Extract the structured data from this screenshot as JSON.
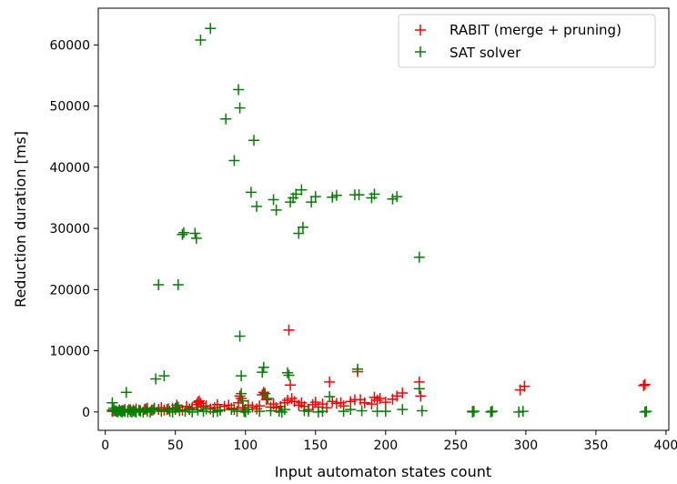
{
  "chart_data": {
    "type": "scatter",
    "xlabel": "Input automaton states count",
    "ylabel": "Reduction duration [ms]",
    "xlim": [
      -5,
      402
    ],
    "ylim": [
      -3000,
      66000
    ],
    "xticks": [
      0,
      50,
      100,
      150,
      200,
      250,
      300,
      350,
      400
    ],
    "yticks": [
      0,
      10000,
      20000,
      30000,
      40000,
      50000,
      60000
    ],
    "grid": false,
    "legend_position": "top-right",
    "marker": "+",
    "series": [
      {
        "name": "RABIT (merge + pruning)",
        "color": "#ff0000",
        "points": [
          [
            5,
            100
          ],
          [
            6,
            200
          ],
          [
            8,
            150
          ],
          [
            10,
            300
          ],
          [
            12,
            250
          ],
          [
            14,
            400
          ],
          [
            16,
            200
          ],
          [
            18,
            350
          ],
          [
            20,
            300
          ],
          [
            22,
            500
          ],
          [
            25,
            200
          ],
          [
            28,
            400
          ],
          [
            30,
            600
          ],
          [
            33,
            300
          ],
          [
            35,
            500
          ],
          [
            38,
            400
          ],
          [
            40,
            700
          ],
          [
            42,
            300
          ],
          [
            45,
            500
          ],
          [
            48,
            600
          ],
          [
            50,
            400
          ],
          [
            52,
            800
          ],
          [
            55,
            300
          ],
          [
            58,
            900
          ],
          [
            60,
            500
          ],
          [
            62,
            700
          ],
          [
            65,
            1200
          ],
          [
            66,
            1600
          ],
          [
            67,
            1800
          ],
          [
            68,
            1400
          ],
          [
            70,
            800
          ],
          [
            72,
            1000
          ],
          [
            75,
            500
          ],
          [
            78,
            700
          ],
          [
            80,
            1200
          ],
          [
            82,
            300
          ],
          [
            85,
            900
          ],
          [
            88,
            1100
          ],
          [
            90,
            600
          ],
          [
            92,
            400
          ],
          [
            95,
            1500
          ],
          [
            96,
            2600
          ],
          [
            97,
            2200
          ],
          [
            98,
            700
          ],
          [
            100,
            400
          ],
          [
            102,
            1100
          ],
          [
            105,
            800
          ],
          [
            108,
            500
          ],
          [
            110,
            1000
          ],
          [
            112,
            2800
          ],
          [
            113,
            3200
          ],
          [
            115,
            2000
          ],
          [
            118,
            800
          ],
          [
            120,
            1300
          ],
          [
            122,
            700
          ],
          [
            125,
            900
          ],
          [
            128,
            1500
          ],
          [
            130,
            1900
          ],
          [
            131,
            13400
          ],
          [
            132,
            4400
          ],
          [
            133,
            2200
          ],
          [
            135,
            1700
          ],
          [
            138,
            1100
          ],
          [
            140,
            1500
          ],
          [
            142,
            900
          ],
          [
            145,
            400
          ],
          [
            148,
            1200
          ],
          [
            150,
            1600
          ],
          [
            152,
            800
          ],
          [
            155,
            1300
          ],
          [
            158,
            700
          ],
          [
            160,
            4900
          ],
          [
            162,
            1700
          ],
          [
            165,
            1400
          ],
          [
            168,
            1500
          ],
          [
            170,
            1000
          ],
          [
            175,
            1700
          ],
          [
            178,
            2000
          ],
          [
            180,
            6600
          ],
          [
            182,
            2000
          ],
          [
            185,
            1500
          ],
          [
            190,
            1300
          ],
          [
            192,
            2400
          ],
          [
            194,
            1900
          ],
          [
            196,
            2200
          ],
          [
            200,
            1600
          ],
          [
            205,
            2100
          ],
          [
            208,
            2600
          ],
          [
            212,
            3100
          ],
          [
            224,
            4900
          ],
          [
            225,
            2600
          ],
          [
            262,
            100
          ],
          [
            276,
            100
          ],
          [
            296,
            3600
          ],
          [
            299,
            4200
          ],
          [
            384,
            4300
          ],
          [
            385,
            4500
          ]
        ]
      },
      {
        "name": "SAT solver",
        "color": "#008000",
        "points": [
          [
            5,
            1500
          ],
          [
            5,
            300
          ],
          [
            6,
            600
          ],
          [
            7,
            200
          ],
          [
            8,
            100
          ],
          [
            9,
            0
          ],
          [
            10,
            300
          ],
          [
            11,
            100
          ],
          [
            12,
            0
          ],
          [
            13,
            200
          ],
          [
            14,
            100
          ],
          [
            15,
            3200
          ],
          [
            16,
            0
          ],
          [
            17,
            400
          ],
          [
            18,
            100
          ],
          [
            19,
            0
          ],
          [
            20,
            200
          ],
          [
            21,
            100
          ],
          [
            22,
            0
          ],
          [
            24,
            300
          ],
          [
            25,
            100
          ],
          [
            27,
            0
          ],
          [
            29,
            500
          ],
          [
            30,
            100
          ],
          [
            32,
            0
          ],
          [
            34,
            300
          ],
          [
            35,
            600
          ],
          [
            36,
            5400
          ],
          [
            38,
            20800
          ],
          [
            40,
            100
          ],
          [
            42,
            5900
          ],
          [
            44,
            400
          ],
          [
            46,
            100
          ],
          [
            48,
            0
          ],
          [
            50,
            600
          ],
          [
            51,
            1100
          ],
          [
            52,
            20800
          ],
          [
            53,
            200
          ],
          [
            55,
            29000
          ],
          [
            56,
            29300
          ],
          [
            57,
            100
          ],
          [
            60,
            400
          ],
          [
            62,
            0
          ],
          [
            64,
            29200
          ],
          [
            65,
            28400
          ],
          [
            66,
            300
          ],
          [
            68,
            60800
          ],
          [
            70,
            100
          ],
          [
            72,
            500
          ],
          [
            75,
            62700
          ],
          [
            77,
            0
          ],
          [
            80,
            100
          ],
          [
            82,
            300
          ],
          [
            86,
            47900
          ],
          [
            90,
            400
          ],
          [
            92,
            41100
          ],
          [
            94,
            100
          ],
          [
            95,
            52700
          ],
          [
            96,
            49700
          ],
          [
            96,
            12400
          ],
          [
            97,
            5900
          ],
          [
            97,
            3000
          ],
          [
            98,
            1800
          ],
          [
            99,
            100
          ],
          [
            100,
            0
          ],
          [
            102,
            400
          ],
          [
            104,
            35900
          ],
          [
            106,
            44400
          ],
          [
            108,
            33600
          ],
          [
            110,
            100
          ],
          [
            112,
            6500
          ],
          [
            113,
            7300
          ],
          [
            114,
            3000
          ],
          [
            116,
            2200
          ],
          [
            118,
            200
          ],
          [
            120,
            34700
          ],
          [
            122,
            33000
          ],
          [
            124,
            100
          ],
          [
            126,
            0
          ],
          [
            128,
            400
          ],
          [
            130,
            6400
          ],
          [
            131,
            6000
          ],
          [
            132,
            34300
          ],
          [
            134,
            35000
          ],
          [
            136,
            35600
          ],
          [
            138,
            29200
          ],
          [
            140,
            36300
          ],
          [
            141,
            30200
          ],
          [
            142,
            200
          ],
          [
            145,
            100
          ],
          [
            147,
            34300
          ],
          [
            150,
            35200
          ],
          [
            152,
            0
          ],
          [
            155,
            100
          ],
          [
            160,
            2500
          ],
          [
            162,
            35100
          ],
          [
            165,
            35400
          ],
          [
            170,
            100
          ],
          [
            175,
            400
          ],
          [
            178,
            35500
          ],
          [
            180,
            7000
          ],
          [
            181,
            35500
          ],
          [
            183,
            200
          ],
          [
            190,
            35000
          ],
          [
            192,
            35600
          ],
          [
            194,
            100
          ],
          [
            200,
            100
          ],
          [
            205,
            34800
          ],
          [
            208,
            35200
          ],
          [
            212,
            400
          ],
          [
            224,
            25300
          ],
          [
            224,
            3800
          ],
          [
            226,
            200
          ],
          [
            262,
            0
          ],
          [
            263,
            100
          ],
          [
            275,
            0
          ],
          [
            276,
            100
          ],
          [
            295,
            0
          ],
          [
            298,
            100
          ],
          [
            385,
            0
          ],
          [
            386,
            100
          ]
        ]
      }
    ]
  }
}
